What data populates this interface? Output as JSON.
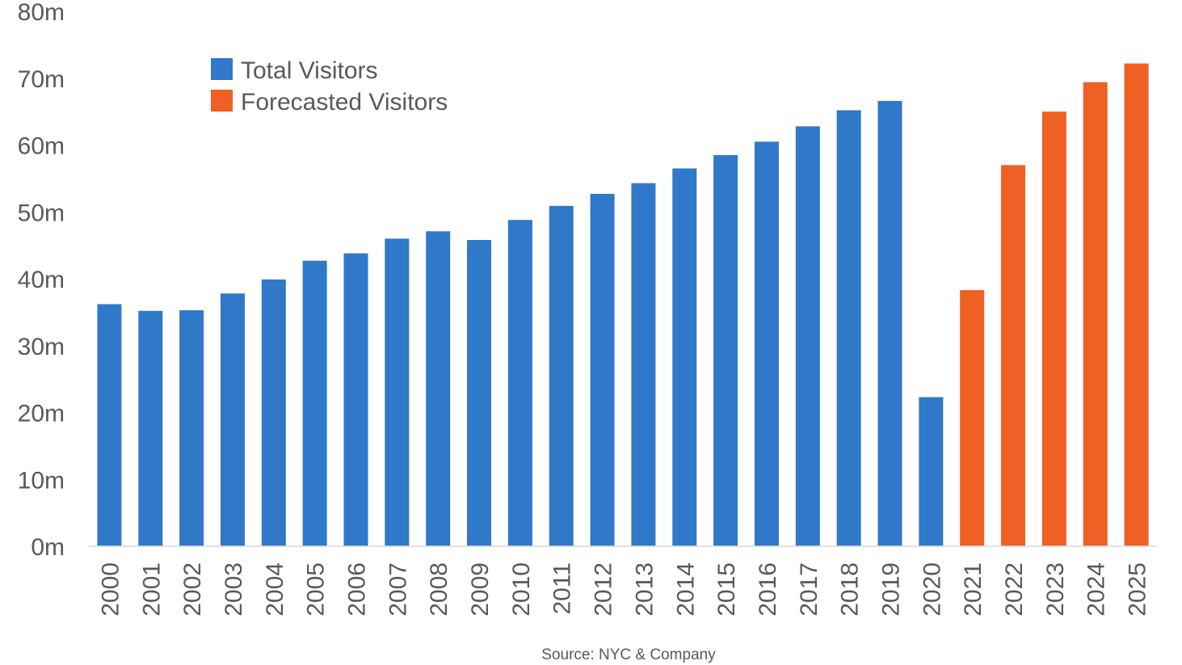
{
  "chart_data": {
    "type": "bar",
    "title": "",
    "xlabel": "",
    "ylabel": "",
    "ylim": [
      0,
      80
    ],
    "y_ticks": [
      "0m",
      "10m",
      "20m",
      "30m",
      "40m",
      "50m",
      "60m",
      "70m",
      "80m"
    ],
    "grid": false,
    "legend_position": "top-left",
    "categories": [
      "2000",
      "2001",
      "2002",
      "2003",
      "2004",
      "2005",
      "2006",
      "2007",
      "2008",
      "2009",
      "2010",
      "2011",
      "2012",
      "2013",
      "2014",
      "2015",
      "2016",
      "2017",
      "2018",
      "2019",
      "2020",
      "2021",
      "2022",
      "2023",
      "2024",
      "2025"
    ],
    "series": [
      {
        "name": "Total Visitors",
        "color": "#3078c8",
        "values": [
          36.2,
          35.2,
          35.3,
          37.8,
          39.9,
          42.7,
          43.8,
          46.0,
          47.1,
          45.8,
          48.8,
          50.9,
          52.7,
          54.3,
          56.5,
          58.5,
          60.5,
          62.8,
          65.2,
          66.6,
          22.3,
          null,
          null,
          null,
          null,
          null
        ]
      },
      {
        "name": "Forecasted Visitors",
        "color": "#ee6023",
        "values": [
          null,
          null,
          null,
          null,
          null,
          null,
          null,
          null,
          null,
          null,
          null,
          null,
          null,
          null,
          null,
          null,
          null,
          null,
          null,
          null,
          null,
          38.3,
          57.0,
          65.0,
          69.4,
          72.2
        ]
      }
    ]
  },
  "source": "Source: NYC & Company"
}
